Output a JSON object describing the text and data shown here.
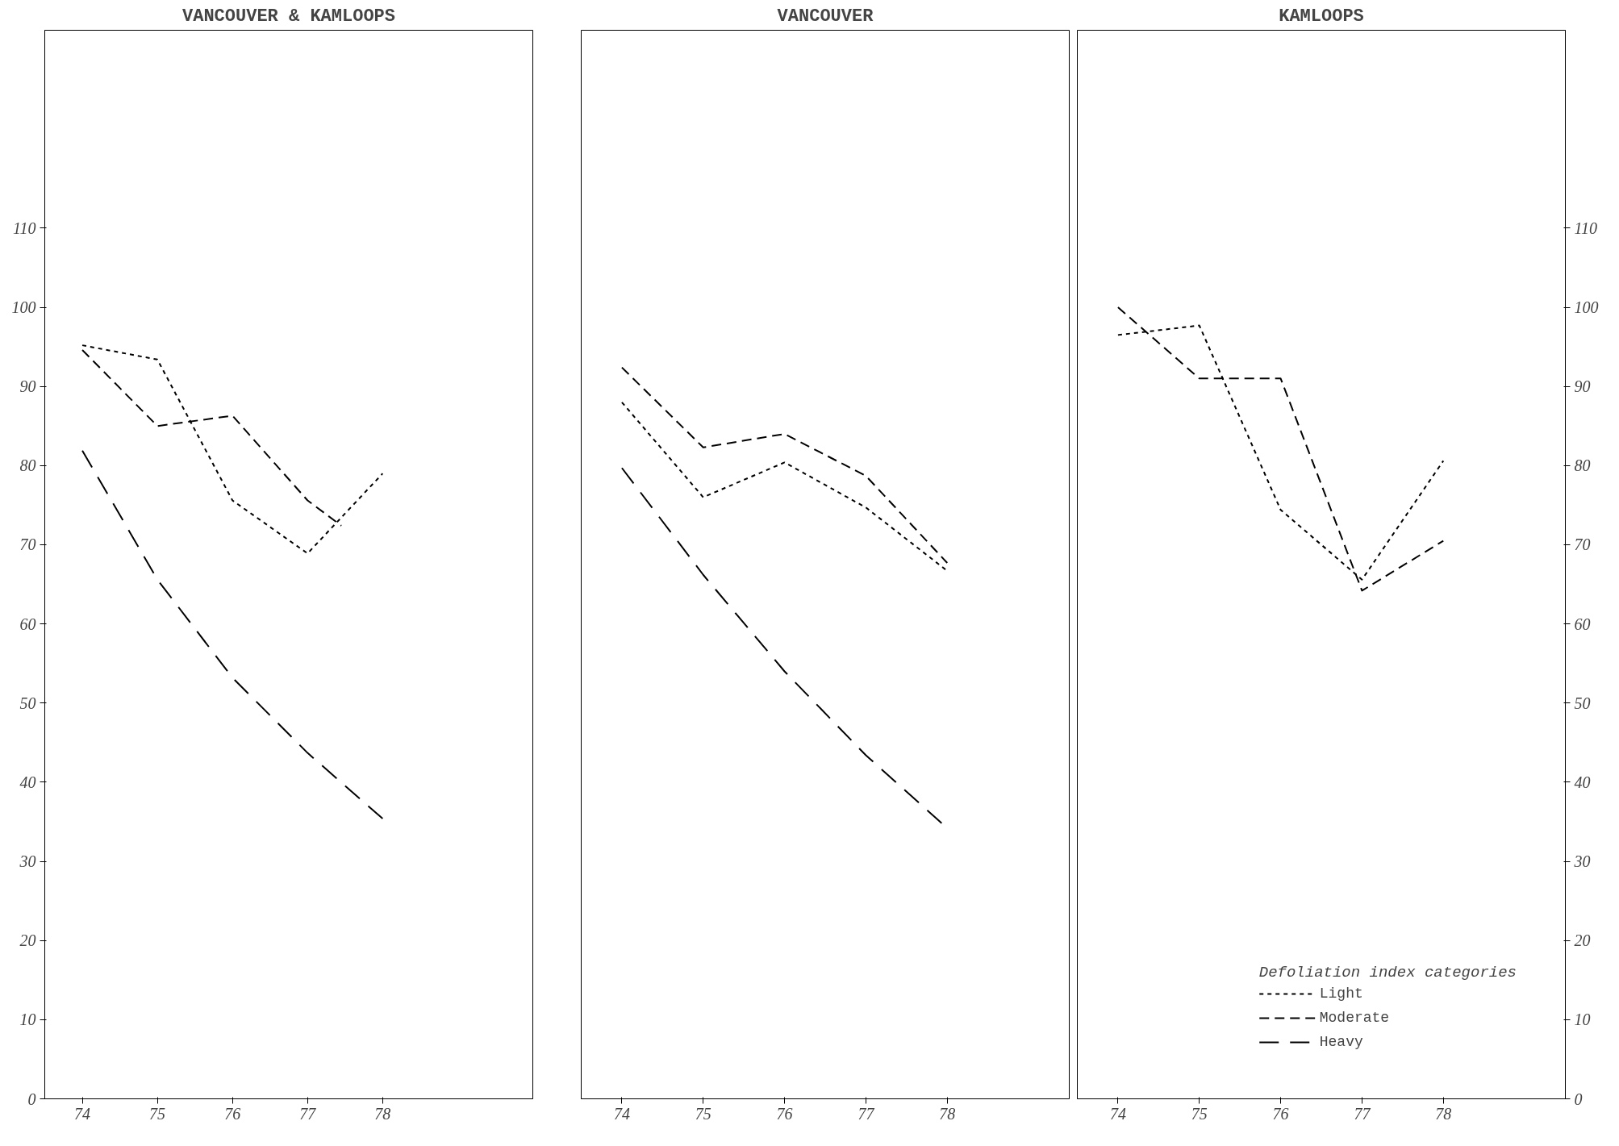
{
  "chart_data": [
    {
      "type": "line",
      "title": "VANCOUVER & KAMLOOPS",
      "x": [
        74,
        75,
        76,
        77,
        78
      ],
      "xlim": [
        73.5,
        80
      ],
      "xticks": [
        74,
        75,
        76,
        77,
        78
      ],
      "ylim": [
        0,
        135
      ],
      "yticks": [
        0,
        10,
        20,
        30,
        40,
        50,
        60,
        70,
        80,
        90,
        100,
        110
      ],
      "grid": false,
      "legend": false,
      "series": [
        {
          "color": "#000000",
          "line_style": "dotted",
          "values": [
            95.2,
            93.4,
            75.6,
            68.9,
            79
          ]
        },
        {
          "color": "#000000",
          "line_style": "dashed",
          "x": [
            74,
            75,
            76,
            77,
            77.45
          ],
          "values": [
            94.6,
            85,
            86.3,
            75.6,
            72.4
          ]
        },
        {
          "color": "#000000",
          "line_style": "dashed",
          "values": [
            81.9,
            65.6,
            53.2,
            43.7,
            35.4
          ]
        }
      ]
    },
    {
      "type": "line",
      "title": "VANCOUVER",
      "x": [
        74,
        75,
        76,
        77,
        78
      ],
      "xlim": [
        73.5,
        79.5
      ],
      "xticks": [
        74,
        75,
        76,
        77,
        78
      ],
      "ylim": [
        0,
        135
      ],
      "tick_labels": "x",
      "grid": false,
      "legend": false,
      "series": [
        {
          "color": "#000000",
          "line_style": "dotted",
          "values": [
            88,
            76,
            80.4,
            74.7,
            66.7
          ]
        },
        {
          "color": "#000000",
          "line_style": "dashed",
          "values": [
            92.4,
            82.3,
            84,
            78.7,
            67.7
          ]
        },
        {
          "color": "#000000",
          "line_style": "dashed",
          "values": [
            79.7,
            66.2,
            54,
            43.4,
            34.2
          ]
        }
      ]
    },
    {
      "type": "line",
      "title": "KAMLOOPS",
      "x": [
        74,
        75,
        76,
        77,
        78
      ],
      "xlim": [
        73.5,
        79.5
      ],
      "xticks": [
        74,
        75,
        76,
        77,
        78
      ],
      "ylim": [
        0,
        135
      ],
      "yticks": [
        0,
        10,
        20,
        30,
        40,
        50,
        60,
        70,
        80,
        90,
        100,
        110
      ],
      "grid": false,
      "legend": "bottom right",
      "legend_title": "Defoliation index categories",
      "series": [
        {
          "name": "Light",
          "color": "#000000",
          "line_style": "dotted",
          "values": [
            96.5,
            97.7,
            74.4,
            65.6,
            80.6
          ]
        },
        {
          "name": "Moderate",
          "color": "#000000",
          "line_style": "dashed",
          "values": [
            100,
            91,
            91,
            64.2,
            70.5
          ]
        },
        {
          "name": "Heavy",
          "color": "#000000",
          "line_style": "dashed",
          "values": [
            null,
            null,
            null,
            null,
            null
          ]
        }
      ]
    }
  ]
}
